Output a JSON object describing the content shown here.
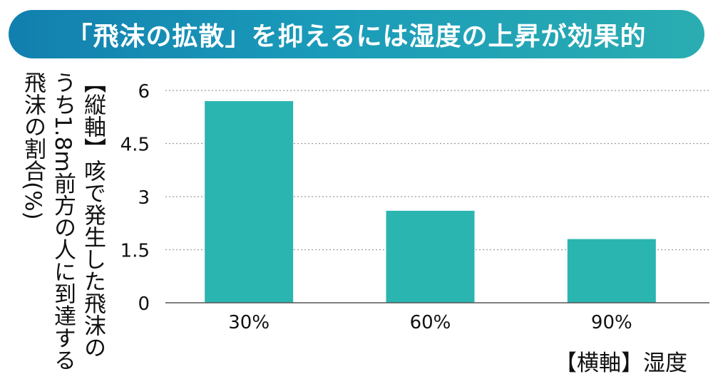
{
  "banner": {
    "title": "「飛沫の拡散」を抑えるには湿度の上昇が効果的"
  },
  "axis_labels": {
    "ylabel_lines": [
      "【縦軸】咳で発生した飛沫の",
      "うち1.8m前方の人に到達する",
      "飛沫の割合(%)"
    ],
    "xlabel": "【横軸】湿度"
  },
  "colors": {
    "bar": "#2bb5b0",
    "banner": "#1a9bb9",
    "grid": "#9a9a9a"
  },
  "chart_data": {
    "type": "bar",
    "title": "「飛沫の拡散」を抑えるには湿度の上昇が効果的",
    "xlabel": "【横軸】湿度",
    "ylabel": "【縦軸】咳で発生した飛沫のうち1.8m前方の人に到達する飛沫の割合(%)",
    "categories": [
      "30%",
      "60%",
      "90%"
    ],
    "values": [
      5.7,
      2.6,
      1.8
    ],
    "ylim": [
      0,
      6
    ],
    "yticks": [
      "0",
      "1.5",
      "3",
      "4.5",
      "6"
    ],
    "grid": true,
    "legend": "none"
  }
}
